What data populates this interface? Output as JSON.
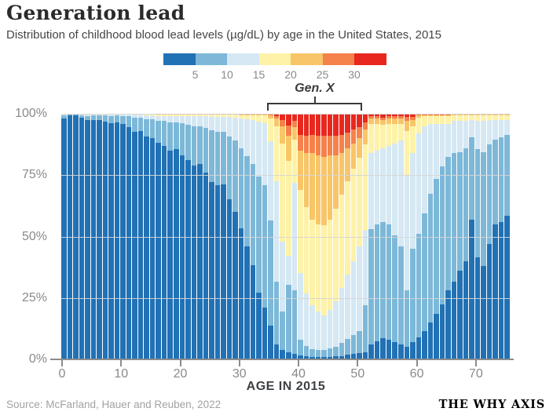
{
  "header": {
    "title": "Generation lead",
    "subtitle": "Distribution of childhood blood lead levels (µg/dL) by age in the United States, 2015"
  },
  "source_note": "Source: McFarland, Hauer and Reuben, 2022",
  "brand": "THE WHY AXIS",
  "annotation": {
    "label": "Gen. X",
    "age_start": 34.8,
    "age_end": 50.9
  },
  "chart_data": {
    "type": "bar",
    "stacked": true,
    "percent": true,
    "title": "Generation lead",
    "xlabel": "AGE IN 2015",
    "ylabel": "",
    "x_range": [
      0,
      75
    ],
    "x_ticks": [
      0,
      10,
      20,
      30,
      40,
      50,
      60,
      70
    ],
    "y_ticks": [
      {
        "v": 0,
        "label": "0%"
      },
      {
        "v": 25,
        "label": "25%"
      },
      {
        "v": 50,
        "label": "50%"
      },
      {
        "v": 75,
        "label": "75%"
      },
      {
        "v": 100,
        "label": "100%"
      }
    ],
    "legend_labels": [
      "5",
      "10",
      "15",
      "20",
      "25",
      "30"
    ],
    "bands": [
      "<5",
      "5-10",
      "10-15",
      "15-20",
      "20-25",
      "25-30",
      "30+"
    ],
    "band_colors": [
      "#2171b5",
      "#7db8d8",
      "#d5e8f3",
      "#fdf2a8",
      "#f8c568",
      "#f5814b",
      "#e8281e"
    ],
    "x": [
      0,
      1,
      2,
      3,
      4,
      5,
      6,
      7,
      8,
      9,
      10,
      11,
      12,
      13,
      14,
      15,
      16,
      17,
      18,
      19,
      20,
      21,
      22,
      23,
      24,
      25,
      26,
      27,
      28,
      29,
      30,
      31,
      32,
      33,
      34,
      35,
      36,
      37,
      38,
      39,
      40,
      41,
      42,
      43,
      44,
      45,
      46,
      47,
      48,
      49,
      50,
      51,
      52,
      53,
      54,
      55,
      56,
      57,
      58,
      59,
      60,
      61,
      62,
      63,
      64,
      65,
      66,
      67,
      68,
      69,
      70,
      71,
      72,
      73,
      74,
      75
    ],
    "values": [
      [
        98.0,
        1.4,
        0.4,
        0.2,
        0,
        0,
        0
      ],
      [
        99.3,
        0.5,
        0.2,
        0,
        0,
        0,
        0
      ],
      [
        99.4,
        0.4,
        0.2,
        0,
        0,
        0,
        0
      ],
      [
        98.5,
        0.8,
        0.3,
        0.2,
        0.1,
        0.1,
        0
      ],
      [
        97.5,
        1.6,
        0.5,
        0.2,
        0.1,
        0.1,
        0
      ],
      [
        97.4,
        2.0,
        0.4,
        0.2,
        0,
        0,
        0
      ],
      [
        97.3,
        2.1,
        0.4,
        0.2,
        0,
        0,
        0
      ],
      [
        96.8,
        2.6,
        0.4,
        0.2,
        0,
        0,
        0
      ],
      [
        96.1,
        3.0,
        0.6,
        0.2,
        0.1,
        0,
        0
      ],
      [
        96.5,
        2.8,
        0.5,
        0.2,
        0,
        0,
        0
      ],
      [
        95.7,
        3.4,
        0.6,
        0.3,
        0,
        0,
        0
      ],
      [
        94.7,
        4.2,
        0.7,
        0.3,
        0.1,
        0,
        0
      ],
      [
        92.7,
        5.8,
        1.1,
        0.3,
        0.1,
        0,
        0
      ],
      [
        93.1,
        5.4,
        1.1,
        0.3,
        0.1,
        0,
        0
      ],
      [
        90.7,
        7.2,
        1.6,
        0.4,
        0.1,
        0,
        0
      ],
      [
        90.1,
        7.6,
        1.8,
        0.4,
        0.1,
        0,
        0
      ],
      [
        88.2,
        9.0,
        2.0,
        0.4,
        0.1,
        0.1,
        0.2
      ],
      [
        87.0,
        10.0,
        2.2,
        0.4,
        0.1,
        0.1,
        0.2
      ],
      [
        85.0,
        11.6,
        2.6,
        0.4,
        0.1,
        0.1,
        0.2
      ],
      [
        85.6,
        11.0,
        2.6,
        0.4,
        0.1,
        0.1,
        0.2
      ],
      [
        83.2,
        13.0,
        2.9,
        0.5,
        0.1,
        0.1,
        0.2
      ],
      [
        81.0,
        14.6,
        3.4,
        0.6,
        0.1,
        0.1,
        0.2
      ],
      [
        79.0,
        16.0,
        4.0,
        0.6,
        0.1,
        0.1,
        0.2
      ],
      [
        79.4,
        15.6,
        4.0,
        0.6,
        0.1,
        0.1,
        0.2
      ],
      [
        76.0,
        18.2,
        4.7,
        0.7,
        0.1,
        0.1,
        0.2
      ],
      [
        72.2,
        21.0,
        5.6,
        0.8,
        0.1,
        0.1,
        0.2
      ],
      [
        71.0,
        21.8,
        6.0,
        0.8,
        0.1,
        0.1,
        0.2
      ],
      [
        71.4,
        21.4,
        6.0,
        0.8,
        0.1,
        0.1,
        0.2
      ],
      [
        65.2,
        25.6,
        7.8,
        1.0,
        0.1,
        0.1,
        0.2
      ],
      [
        60.0,
        29.0,
        9.4,
        1.2,
        0.1,
        0.1,
        0.2
      ],
      [
        53.2,
        32.6,
        12.2,
        1.5,
        0.2,
        0.1,
        0.2
      ],
      [
        46.0,
        36.6,
        15.2,
        1.7,
        0.2,
        0.1,
        0.2
      ],
      [
        38.2,
        41.4,
        17.9,
        2.0,
        0.2,
        0.1,
        0.2
      ],
      [
        27.2,
        47.4,
        22.3,
        2.5,
        0.3,
        0.1,
        0.2
      ],
      [
        21.0,
        49.8,
        25.3,
        3.2,
        0.3,
        0.2,
        0.2
      ],
      [
        13.8,
        42.6,
        32.3,
        9.5,
        1.2,
        0.3,
        0.3
      ],
      [
        6.2,
        25.4,
        40.9,
        22.5,
        3.2,
        1.0,
        0.8
      ],
      [
        3.8,
        15.6,
        28.4,
        40.2,
        7.0,
        2.6,
        2.4
      ],
      [
        2.8,
        27.6,
        11.8,
        38.8,
        10.0,
        4.2,
        4.8
      ],
      [
        2.2,
        26.0,
        43.8,
        17.5,
        5.0,
        2.5,
        3.0
      ],
      [
        1.6,
        6.4,
        27.0,
        34.0,
        16.0,
        6.5,
        8.5
      ],
      [
        1.2,
        4.2,
        21.6,
        35.0,
        22.0,
        7.0,
        9.0
      ],
      [
        1.0,
        3.2,
        17.8,
        35.0,
        27.0,
        7.5,
        8.5
      ],
      [
        1.0,
        3.0,
        15.5,
        35.5,
        28.0,
        8.0,
        9.0
      ],
      [
        1.0,
        3.0,
        14.0,
        36.5,
        28.0,
        8.5,
        9.0
      ],
      [
        1.0,
        3.4,
        15.6,
        37.0,
        26.0,
        8.0,
        9.0
      ],
      [
        1.2,
        4.0,
        18.3,
        38.0,
        21.5,
        8.0,
        9.0
      ],
      [
        1.4,
        5.2,
        22.4,
        38.0,
        17.0,
        7.5,
        8.5
      ],
      [
        1.8,
        6.4,
        26.3,
        38.0,
        13.5,
        6.5,
        7.5
      ],
      [
        2.2,
        7.6,
        30.2,
        37.5,
        10.5,
        5.5,
        6.5
      ],
      [
        2.6,
        9.0,
        34.4,
        36.0,
        8.0,
        4.5,
        5.5
      ],
      [
        3.0,
        19.0,
        30.5,
        35.0,
        6.0,
        3.0,
        3.5
      ],
      [
        6.0,
        47.0,
        31.0,
        12.0,
        2.0,
        1.0,
        1.0
      ],
      [
        7.5,
        47.5,
        30.0,
        11.0,
        2.0,
        1.0,
        1.0
      ],
      [
        8.5,
        47.5,
        30.0,
        9.5,
        2.0,
        1.0,
        1.5
      ],
      [
        8.0,
        47.0,
        32.0,
        9.0,
        2.0,
        1.0,
        1.0
      ],
      [
        7.0,
        43.5,
        37.5,
        8.0,
        2.0,
        1.0,
        1.0
      ],
      [
        6.0,
        40.0,
        43.0,
        7.0,
        2.0,
        1.0,
        1.0
      ],
      [
        5.0,
        23.0,
        47.0,
        18.0,
        4.0,
        1.6,
        1.4
      ],
      [
        7.0,
        38.0,
        39.0,
        11.0,
        2.5,
        1.2,
        1.3
      ],
      [
        9.0,
        42.0,
        41.0,
        6.5,
        0.8,
        0.4,
        0.3
      ],
      [
        11.5,
        48.0,
        35.5,
        4.0,
        0.5,
        0.3,
        0.2
      ],
      [
        15.0,
        52.5,
        28.5,
        3.0,
        0.5,
        0.3,
        0.2
      ],
      [
        18.5,
        55.0,
        22.5,
        3.0,
        0.5,
        0.3,
        0.2
      ],
      [
        22.5,
        56.0,
        17.5,
        3.0,
        0.5,
        0.3,
        0.2
      ],
      [
        28.0,
        54.5,
        13.5,
        3.0,
        0.5,
        0.3,
        0.2
      ],
      [
        31.5,
        52.5,
        13.0,
        2.4,
        0.3,
        0.2,
        0.1
      ],
      [
        36.0,
        48.5,
        12.5,
        2.4,
        0.3,
        0.2,
        0.1
      ],
      [
        40.0,
        46.0,
        11.0,
        2.4,
        0.3,
        0.2,
        0.1
      ],
      [
        57.0,
        33.5,
        7.0,
        1.9,
        0.3,
        0.2,
        0.1
      ],
      [
        41.5,
        44.0,
        11.5,
        2.4,
        0.3,
        0.2,
        0.1
      ],
      [
        38.0,
        46.5,
        12.5,
        2.4,
        0.3,
        0.2,
        0.1
      ],
      [
        47.0,
        40.5,
        10.0,
        1.9,
        0.3,
        0.2,
        0.1
      ],
      [
        55.0,
        34.5,
        8.0,
        1.9,
        0.3,
        0.2,
        0.1
      ],
      [
        56.0,
        34.5,
        7.0,
        1.9,
        0.3,
        0.2,
        0.1
      ],
      [
        58.5,
        33.0,
        6.0,
        1.9,
        0.3,
        0.2,
        0.1
      ]
    ]
  }
}
